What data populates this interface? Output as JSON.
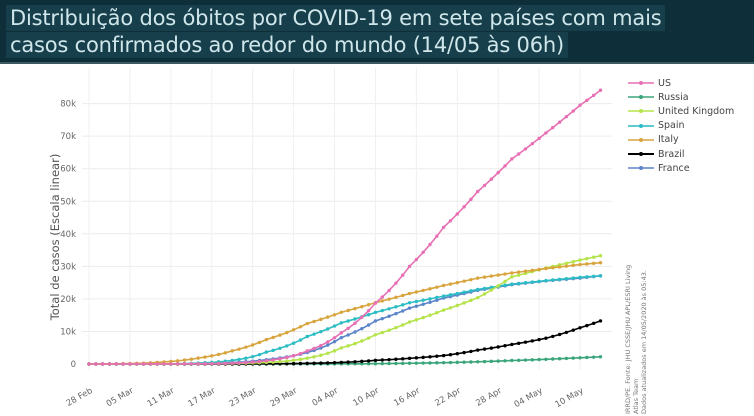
{
  "header": {
    "title_line1": "Distribuição dos óbitos por COVID-19 em sete países com mais",
    "title_line2": "casos confirmados ao redor do mundo (14/05 às 06h)"
  },
  "source": {
    "line1": "IRRD/PE. Fonte: JHU CSSE/JHU APL/ESRI Living Atlas Team",
    "line2": "Dados atualizados em 14/05/2020 às 05:43."
  },
  "chart_data": {
    "type": "line",
    "title": "Distribuição dos óbitos por COVID-19 em sete países com mais casos confirmados ao redor do mundo (14/05 às 06h)",
    "xlabel": "",
    "ylabel": "Total de casos (Escala linear)",
    "ylim": [
      0,
      88000
    ],
    "yticks": [
      0,
      10000,
      20000,
      30000,
      40000,
      50000,
      60000,
      70000,
      80000
    ],
    "ytick_labels": [
      "0",
      "10k",
      "20k",
      "30k",
      "40k",
      "50k",
      "60k",
      "70k",
      "80k"
    ],
    "xtick_labels": [
      "28 Feb",
      "05 Mar",
      "11 Mar",
      "17 Mar",
      "23 Mar",
      "29 Mar",
      "04 Apr",
      "10 Apr",
      "16 Apr",
      "22 Apr",
      "28 Apr",
      "04 May",
      "10 May"
    ],
    "xtick_days": [
      0,
      6,
      12,
      18,
      24,
      30,
      36,
      42,
      48,
      54,
      60,
      66,
      72
    ],
    "x_day_range": [
      0,
      75
    ],
    "key_dates": [
      "28 Feb",
      "01 Mar",
      "05 Mar",
      "10 Mar",
      "15 Mar",
      "20 Mar",
      "25 Mar",
      "31 Mar",
      "05 Apr",
      "10 Apr",
      "15 Apr",
      "20 Apr",
      "25 Apr",
      "30 Apr",
      "05 May",
      "10 May",
      "13 May"
    ],
    "key_days": [
      0,
      2,
      6,
      11,
      16,
      21,
      26,
      32,
      37,
      42,
      47,
      52,
      57,
      62,
      67,
      72,
      75
    ],
    "legend_position": "top-right",
    "grid": true,
    "series": [
      {
        "name": "US",
        "color": "#e76fb4",
        "values": [
          0,
          1,
          11,
          28,
          60,
          250,
          1000,
          4000,
          9600,
          18700,
          30000,
          42000,
          53000,
          63000,
          71000,
          79500,
          84100
        ]
      },
      {
        "name": "Russia",
        "color": "#3aa57a",
        "values": [
          0,
          0,
          0,
          0,
          0,
          1,
          3,
          17,
          45,
          94,
          232,
          405,
          681,
          1073,
          1451,
          1915,
          2212
        ]
      },
      {
        "name": "United Kingdom",
        "color": "#b5e34a",
        "values": [
          0,
          0,
          0,
          6,
          56,
          178,
          466,
          1793,
          4943,
          8973,
          12894,
          16550,
          20381,
          26771,
          29501,
          31930,
          33264
        ]
      },
      {
        "name": "Spain",
        "color": "#2bbcc4",
        "values": [
          0,
          0,
          3,
          36,
          297,
          1093,
          3647,
          8464,
          12641,
          15843,
          18812,
          20852,
          22902,
          24543,
          25613,
          26621,
          27104
        ]
      },
      {
        "name": "Italy",
        "color": "#d8a43e",
        "values": [
          17,
          34,
          148,
          631,
          1809,
          4032,
          7503,
          12428,
          15887,
          18849,
          21645,
          24114,
          26384,
          27967,
          29315,
          30560,
          31106
        ]
      },
      {
        "name": "Brazil",
        "color": "#000000",
        "values": [
          0,
          0,
          0,
          0,
          0,
          11,
          59,
          201,
          486,
          1124,
          1736,
          2587,
          4271,
          6006,
          7921,
          11123,
          13240
        ]
      },
      {
        "name": "France",
        "color": "#5b84c9",
        "values": [
          2,
          2,
          4,
          33,
          91,
          450,
          1331,
          3532,
          8093,
          13215,
          17167,
          20265,
          22614,
          24376,
          25531,
          26383,
          27074
        ]
      }
    ]
  }
}
